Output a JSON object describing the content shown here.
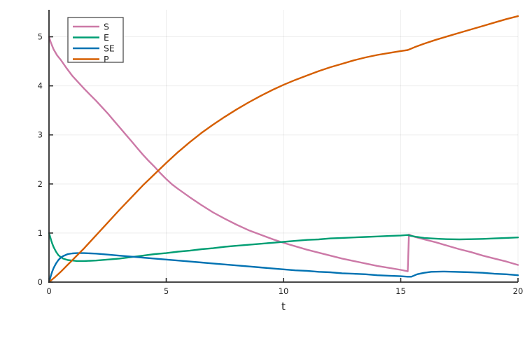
{
  "figure": {
    "background": "#ffffff",
    "axis_color": "#2e2e2e",
    "grid_color": "rgba(0,0,0,0.07)",
    "tick_label_color": "#262626",
    "legend_border_color": "#4d4d4d",
    "legend_background": "#ffffff"
  },
  "chart_data": {
    "type": "line",
    "title": "",
    "xlabel": "t",
    "ylabel": "",
    "xlim": [
      0,
      20
    ],
    "ylim": [
      0,
      5.55
    ],
    "xticks": [
      0,
      5,
      10,
      15,
      20
    ],
    "yticks": [
      0,
      1,
      2,
      3,
      4,
      5
    ],
    "grid": true,
    "legend_position": "top-left",
    "legend_entries": [
      "S",
      "E",
      "SE",
      "P"
    ],
    "series": [
      {
        "name": "S",
        "color": "#CC79A7",
        "points": [
          [
            0,
            5.0
          ],
          [
            0.08,
            4.88
          ],
          [
            0.2,
            4.74
          ],
          [
            0.35,
            4.62
          ],
          [
            0.5,
            4.53
          ],
          [
            0.75,
            4.36
          ],
          [
            1,
            4.2
          ],
          [
            1.25,
            4.07
          ],
          [
            1.5,
            3.94
          ],
          [
            1.75,
            3.82
          ],
          [
            2,
            3.7
          ],
          [
            2.25,
            3.57
          ],
          [
            2.5,
            3.44
          ],
          [
            2.75,
            3.3
          ],
          [
            3,
            3.16
          ],
          [
            3.25,
            3.02
          ],
          [
            3.5,
            2.88
          ],
          [
            3.75,
            2.74
          ],
          [
            4,
            2.6
          ],
          [
            4.25,
            2.47
          ],
          [
            4.5,
            2.35
          ],
          [
            4.75,
            2.22
          ],
          [
            5,
            2.1
          ],
          [
            5.25,
            1.99
          ],
          [
            5.5,
            1.9
          ],
          [
            6,
            1.73
          ],
          [
            6.5,
            1.57
          ],
          [
            7,
            1.42
          ],
          [
            7.5,
            1.29
          ],
          [
            8,
            1.17
          ],
          [
            8.5,
            1.06
          ],
          [
            9,
            0.97
          ],
          [
            9.5,
            0.88
          ],
          [
            10,
            0.8
          ],
          [
            10.5,
            0.73
          ],
          [
            11,
            0.66
          ],
          [
            11.5,
            0.6
          ],
          [
            12,
            0.54
          ],
          [
            12.5,
            0.48
          ],
          [
            13,
            0.43
          ],
          [
            13.5,
            0.38
          ],
          [
            14,
            0.33
          ],
          [
            14.5,
            0.29
          ],
          [
            15,
            0.25
          ],
          [
            15.3,
            0.22
          ],
          [
            15.35,
            0.97
          ],
          [
            15.6,
            0.92
          ],
          [
            16,
            0.87
          ],
          [
            16.5,
            0.81
          ],
          [
            17,
            0.74
          ],
          [
            17.5,
            0.67
          ],
          [
            18,
            0.61
          ],
          [
            18.5,
            0.54
          ],
          [
            19,
            0.48
          ],
          [
            19.5,
            0.42
          ],
          [
            20,
            0.35
          ]
        ]
      },
      {
        "name": "E",
        "color": "#009E73",
        "points": [
          [
            0,
            1.0
          ],
          [
            0.05,
            0.92
          ],
          [
            0.1,
            0.84
          ],
          [
            0.15,
            0.77
          ],
          [
            0.2,
            0.71
          ],
          [
            0.3,
            0.62
          ],
          [
            0.4,
            0.55
          ],
          [
            0.5,
            0.51
          ],
          [
            0.6,
            0.48
          ],
          [
            0.8,
            0.45
          ],
          [
            1,
            0.44
          ],
          [
            1.2,
            0.43
          ],
          [
            1.5,
            0.43
          ],
          [
            2,
            0.44
          ],
          [
            2.5,
            0.46
          ],
          [
            3,
            0.48
          ],
          [
            3.5,
            0.51
          ],
          [
            4,
            0.54
          ],
          [
            4.5,
            0.57
          ],
          [
            5,
            0.59
          ],
          [
            5.5,
            0.62
          ],
          [
            6,
            0.64
          ],
          [
            6.5,
            0.67
          ],
          [
            7,
            0.69
          ],
          [
            7.5,
            0.72
          ],
          [
            8,
            0.74
          ],
          [
            8.5,
            0.76
          ],
          [
            9,
            0.78
          ],
          [
            9.5,
            0.8
          ],
          [
            10,
            0.82
          ],
          [
            10.5,
            0.84
          ],
          [
            11,
            0.86
          ],
          [
            11.5,
            0.87
          ],
          [
            12,
            0.89
          ],
          [
            12.5,
            0.9
          ],
          [
            13,
            0.91
          ],
          [
            13.5,
            0.92
          ],
          [
            14,
            0.93
          ],
          [
            14.5,
            0.94
          ],
          [
            15,
            0.95
          ],
          [
            15.3,
            0.96
          ],
          [
            15.45,
            0.94
          ],
          [
            15.7,
            0.92
          ],
          [
            16,
            0.9
          ],
          [
            16.3,
            0.89
          ],
          [
            16.7,
            0.88
          ],
          [
            17,
            0.875
          ],
          [
            17.5,
            0.87
          ],
          [
            18,
            0.875
          ],
          [
            18.5,
            0.88
          ],
          [
            19,
            0.89
          ],
          [
            19.5,
            0.9
          ],
          [
            20,
            0.91
          ]
        ]
      },
      {
        "name": "SE",
        "color": "#0072B2",
        "points": [
          [
            0,
            0
          ],
          [
            0.05,
            0.08
          ],
          [
            0.1,
            0.16
          ],
          [
            0.15,
            0.23
          ],
          [
            0.2,
            0.29
          ],
          [
            0.3,
            0.38
          ],
          [
            0.4,
            0.45
          ],
          [
            0.5,
            0.5
          ],
          [
            0.6,
            0.53
          ],
          [
            0.8,
            0.57
          ],
          [
            1,
            0.585
          ],
          [
            1.2,
            0.59
          ],
          [
            1.5,
            0.59
          ],
          [
            2,
            0.58
          ],
          [
            2.5,
            0.56
          ],
          [
            3,
            0.54
          ],
          [
            3.5,
            0.52
          ],
          [
            4,
            0.5
          ],
          [
            4.5,
            0.48
          ],
          [
            5,
            0.46
          ],
          [
            5.5,
            0.44
          ],
          [
            6,
            0.42
          ],
          [
            6.5,
            0.4
          ],
          [
            7,
            0.38
          ],
          [
            7.5,
            0.36
          ],
          [
            8,
            0.34
          ],
          [
            8.5,
            0.32
          ],
          [
            9,
            0.3
          ],
          [
            9.5,
            0.28
          ],
          [
            10,
            0.26
          ],
          [
            10.5,
            0.24
          ],
          [
            11,
            0.23
          ],
          [
            11.5,
            0.21
          ],
          [
            12,
            0.2
          ],
          [
            12.5,
            0.18
          ],
          [
            13,
            0.17
          ],
          [
            13.5,
            0.16
          ],
          [
            14,
            0.14
          ],
          [
            14.5,
            0.13
          ],
          [
            15,
            0.12
          ],
          [
            15.3,
            0.11
          ],
          [
            15.45,
            0.11
          ],
          [
            15.7,
            0.16
          ],
          [
            16,
            0.19
          ],
          [
            16.3,
            0.21
          ],
          [
            16.8,
            0.215
          ],
          [
            17.3,
            0.21
          ],
          [
            18,
            0.2
          ],
          [
            18.5,
            0.19
          ],
          [
            19,
            0.17
          ],
          [
            19.5,
            0.16
          ],
          [
            20,
            0.14
          ]
        ]
      },
      {
        "name": "P",
        "color": "#D55E00",
        "points": [
          [
            0,
            0
          ],
          [
            0.25,
            0.1
          ],
          [
            0.5,
            0.21
          ],
          [
            0.75,
            0.33
          ],
          [
            1,
            0.45
          ],
          [
            1.25,
            0.57
          ],
          [
            1.5,
            0.69
          ],
          [
            2,
            0.95
          ],
          [
            2.5,
            1.21
          ],
          [
            3,
            1.47
          ],
          [
            3.5,
            1.72
          ],
          [
            4,
            1.97
          ],
          [
            4.5,
            2.2
          ],
          [
            5,
            2.43
          ],
          [
            5.5,
            2.65
          ],
          [
            6,
            2.85
          ],
          [
            6.5,
            3.04
          ],
          [
            7,
            3.21
          ],
          [
            7.5,
            3.37
          ],
          [
            8,
            3.52
          ],
          [
            8.5,
            3.66
          ],
          [
            9,
            3.79
          ],
          [
            9.5,
            3.91
          ],
          [
            10,
            4.02
          ],
          [
            10.5,
            4.12
          ],
          [
            11,
            4.21
          ],
          [
            11.5,
            4.3
          ],
          [
            12,
            4.38
          ],
          [
            12.5,
            4.45
          ],
          [
            13,
            4.52
          ],
          [
            13.5,
            4.58
          ],
          [
            14,
            4.63
          ],
          [
            14.5,
            4.67
          ],
          [
            15,
            4.71
          ],
          [
            15.3,
            4.73
          ],
          [
            15.6,
            4.79
          ],
          [
            16,
            4.86
          ],
          [
            16.5,
            4.94
          ],
          [
            17,
            5.01
          ],
          [
            17.5,
            5.08
          ],
          [
            18,
            5.15
          ],
          [
            18.5,
            5.22
          ],
          [
            19,
            5.29
          ],
          [
            19.5,
            5.36
          ],
          [
            20,
            5.42
          ]
        ]
      }
    ]
  }
}
